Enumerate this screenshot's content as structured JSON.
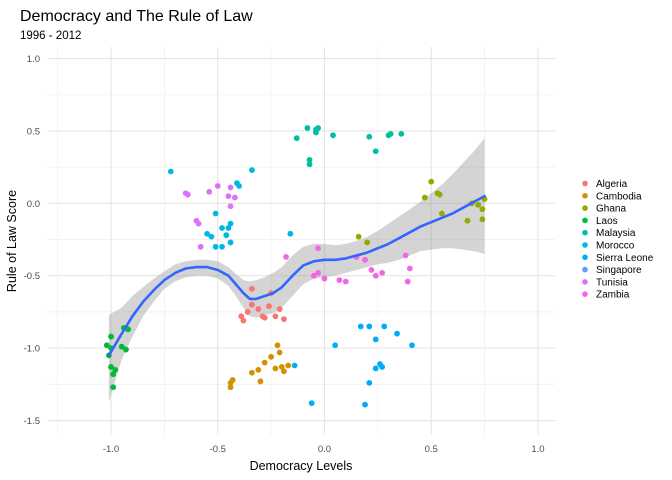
{
  "chart_data": {
    "type": "scatter",
    "title": "Democracy and The Rule of Law",
    "subtitle": "1996 - 2012",
    "xlabel": "Democracy Levels",
    "ylabel": "Rule of Law Score",
    "xlim": [
      -1.3,
      1.08
    ],
    "ylim": [
      -1.6,
      1.08
    ],
    "x_ticks": [
      -1.0,
      -0.5,
      0.0,
      0.5,
      1.0
    ],
    "x_tick_labels": [
      "-1.0",
      "-0.5",
      "0.0",
      "0.5",
      "1.0"
    ],
    "y_ticks": [
      -1.5,
      -1.0,
      -0.5,
      0.0,
      0.5,
      1.0
    ],
    "y_tick_labels": [
      "-1.5",
      "-1.0",
      "-0.5",
      "0.0",
      "0.5",
      "1.0"
    ],
    "grid": true,
    "legend_position": "right",
    "series": [
      {
        "name": "Algeria",
        "color": "#F8766D",
        "points": [
          [
            -0.39,
            -0.78
          ],
          [
            -0.38,
            -0.81
          ],
          [
            -0.36,
            -0.75
          ],
          [
            -0.34,
            -0.7
          ],
          [
            -0.34,
            -0.59
          ],
          [
            -0.31,
            -0.73
          ],
          [
            -0.29,
            -0.78
          ],
          [
            -0.28,
            -0.79
          ],
          [
            -0.26,
            -0.71
          ],
          [
            -0.23,
            -0.78
          ],
          [
            -0.21,
            -0.73
          ],
          [
            -0.19,
            -0.8
          ],
          [
            -0.25,
            -0.62
          ]
        ]
      },
      {
        "name": "Cambodia",
        "color": "#D39200",
        "points": [
          [
            -0.44,
            -1.24
          ],
          [
            -0.44,
            -1.27
          ],
          [
            -0.43,
            -1.22
          ],
          [
            -0.34,
            -1.17
          ],
          [
            -0.31,
            -1.15
          ],
          [
            -0.3,
            -1.23
          ],
          [
            -0.28,
            -1.1
          ],
          [
            -0.25,
            -1.06
          ],
          [
            -0.23,
            -1.14
          ],
          [
            -0.22,
            -0.98
          ],
          [
            -0.21,
            -1.03
          ],
          [
            -0.2,
            -1.13
          ],
          [
            -0.19,
            -1.16
          ],
          [
            -0.17,
            -1.12
          ]
        ]
      },
      {
        "name": "Ghana",
        "color": "#93AA00",
        "points": [
          [
            0.16,
            -0.23
          ],
          [
            0.2,
            -0.27
          ],
          [
            0.47,
            0.04
          ],
          [
            0.5,
            0.15
          ],
          [
            0.53,
            0.07
          ],
          [
            0.54,
            0.06
          ],
          [
            0.55,
            -0.07
          ],
          [
            0.67,
            -0.12
          ],
          [
            0.69,
            0.0
          ],
          [
            0.72,
            -0.01
          ],
          [
            0.74,
            -0.04
          ],
          [
            0.74,
            -0.11
          ],
          [
            0.75,
            0.03
          ]
        ]
      },
      {
        "name": "Laos",
        "color": "#00BA38",
        "points": [
          [
            -1.02,
            -0.98
          ],
          [
            -1.01,
            -1.05
          ],
          [
            -1.0,
            -0.92
          ],
          [
            -1.0,
            -1.0
          ],
          [
            -1.0,
            -1.13
          ],
          [
            -0.99,
            -1.18
          ],
          [
            -0.99,
            -1.27
          ],
          [
            -0.95,
            -0.99
          ],
          [
            -0.94,
            -0.86
          ],
          [
            -0.93,
            -1.01
          ],
          [
            -0.92,
            -0.87
          ],
          [
            -0.98,
            -1.15
          ]
        ]
      },
      {
        "name": "Malaysia",
        "color": "#00C19F",
        "points": [
          [
            -0.13,
            0.45
          ],
          [
            -0.08,
            0.52
          ],
          [
            -0.07,
            0.27
          ],
          [
            -0.07,
            0.3
          ],
          [
            -0.04,
            0.51
          ],
          [
            -0.04,
            0.49
          ],
          [
            -0.03,
            0.52
          ],
          [
            0.04,
            0.47
          ],
          [
            0.21,
            0.46
          ],
          [
            0.3,
            0.47
          ],
          [
            0.31,
            0.48
          ],
          [
            0.36,
            0.48
          ],
          [
            0.24,
            0.36
          ]
        ]
      },
      {
        "name": "Morocco",
        "color": "#00B9E3",
        "points": [
          [
            -0.34,
            0.23
          ],
          [
            -0.72,
            0.22
          ],
          [
            -0.51,
            -0.3
          ],
          [
            -0.48,
            -0.3
          ],
          [
            -0.44,
            -0.27
          ],
          [
            -0.41,
            0.14
          ],
          [
            -0.4,
            0.12
          ],
          [
            -0.51,
            -0.07
          ],
          [
            -0.46,
            -0.22
          ],
          [
            -0.45,
            -0.17
          ],
          [
            -0.48,
            -0.17
          ],
          [
            -0.55,
            -0.21
          ],
          [
            -0.53,
            -0.23
          ],
          [
            -0.44,
            -0.14
          ],
          [
            -0.16,
            -0.21
          ]
        ]
      },
      {
        "name": "Sierra Leone",
        "color": "#00ADFA",
        "points": [
          [
            0.17,
            -0.85
          ],
          [
            0.21,
            -0.85
          ],
          [
            0.24,
            -0.94
          ],
          [
            0.28,
            -0.85
          ],
          [
            0.34,
            -0.9
          ],
          [
            0.41,
            -0.98
          ],
          [
            0.26,
            -1.11
          ],
          [
            0.27,
            -1.13
          ],
          [
            0.21,
            -1.24
          ],
          [
            0.19,
            -1.39
          ],
          [
            -0.14,
            -1.12
          ],
          [
            -0.06,
            -1.38
          ],
          [
            0.05,
            -0.98
          ],
          [
            0.24,
            -1.14
          ]
        ]
      },
      {
        "name": "Singapore",
        "color": "#619CFF",
        "points": []
      },
      {
        "name": "Tunisia",
        "color": "#DB72FB",
        "points": [
          [
            -0.65,
            0.07
          ],
          [
            -0.64,
            0.06
          ],
          [
            -0.6,
            -0.12
          ],
          [
            -0.59,
            -0.14
          ],
          [
            -0.58,
            -0.3
          ],
          [
            -0.54,
            0.08
          ],
          [
            -0.5,
            0.12
          ],
          [
            -0.44,
            0.11
          ],
          [
            -0.42,
            0.04
          ],
          [
            -0.44,
            -0.02
          ],
          [
            -0.45,
            0.05
          ]
        ]
      },
      {
        "name": "Zambia",
        "color": "#F564E3",
        "points": [
          [
            -0.18,
            -0.37
          ],
          [
            -0.03,
            -0.31
          ],
          [
            -0.03,
            -0.48
          ],
          [
            0.0,
            -0.52
          ],
          [
            0.07,
            -0.53
          ],
          [
            0.1,
            -0.54
          ],
          [
            0.15,
            -0.37
          ],
          [
            0.19,
            -0.39
          ],
          [
            0.22,
            -0.46
          ],
          [
            0.24,
            -0.5
          ],
          [
            0.27,
            -0.48
          ],
          [
            0.38,
            -0.36
          ],
          [
            0.4,
            -0.45
          ],
          [
            0.39,
            -0.54
          ],
          [
            -0.05,
            -0.5
          ]
        ]
      }
    ],
    "smooth": {
      "color": "#3366FF",
      "line": [
        [
          -1.01,
          -1.05
        ],
        [
          -0.95,
          -0.9
        ],
        [
          -0.9,
          -0.78
        ],
        [
          -0.85,
          -0.68
        ],
        [
          -0.8,
          -0.6
        ],
        [
          -0.75,
          -0.53
        ],
        [
          -0.7,
          -0.48
        ],
        [
          -0.65,
          -0.45
        ],
        [
          -0.6,
          -0.44
        ],
        [
          -0.55,
          -0.44
        ],
        [
          -0.5,
          -0.46
        ],
        [
          -0.45,
          -0.5
        ],
        [
          -0.42,
          -0.55
        ],
        [
          -0.38,
          -0.62
        ],
        [
          -0.35,
          -0.66
        ],
        [
          -0.32,
          -0.66
        ],
        [
          -0.28,
          -0.64
        ],
        [
          -0.24,
          -0.62
        ],
        [
          -0.2,
          -0.58
        ],
        [
          -0.15,
          -0.5
        ],
        [
          -0.1,
          -0.43
        ],
        [
          -0.05,
          -0.4
        ],
        [
          0.0,
          -0.39
        ],
        [
          0.05,
          -0.39
        ],
        [
          0.1,
          -0.38
        ],
        [
          0.15,
          -0.36
        ],
        [
          0.2,
          -0.34
        ],
        [
          0.25,
          -0.31
        ],
        [
          0.3,
          -0.28
        ],
        [
          0.35,
          -0.24
        ],
        [
          0.4,
          -0.2
        ],
        [
          0.45,
          -0.16
        ],
        [
          0.5,
          -0.13
        ],
        [
          0.55,
          -0.1
        ],
        [
          0.6,
          -0.07
        ],
        [
          0.65,
          -0.03
        ],
        [
          0.7,
          0.01
        ],
        [
          0.75,
          0.05
        ]
      ],
      "upper": [
        [
          -1.01,
          -0.77
        ],
        [
          -0.95,
          -0.72
        ],
        [
          -0.9,
          -0.64
        ],
        [
          -0.85,
          -0.58
        ],
        [
          -0.8,
          -0.52
        ],
        [
          -0.75,
          -0.47
        ],
        [
          -0.7,
          -0.42
        ],
        [
          -0.65,
          -0.4
        ],
        [
          -0.6,
          -0.39
        ],
        [
          -0.55,
          -0.39
        ],
        [
          -0.5,
          -0.4
        ],
        [
          -0.45,
          -0.44
        ],
        [
          -0.42,
          -0.48
        ],
        [
          -0.38,
          -0.53
        ],
        [
          -0.35,
          -0.54
        ],
        [
          -0.32,
          -0.53
        ],
        [
          -0.28,
          -0.51
        ],
        [
          -0.24,
          -0.48
        ],
        [
          -0.2,
          -0.44
        ],
        [
          -0.15,
          -0.36
        ],
        [
          -0.1,
          -0.3
        ],
        [
          -0.05,
          -0.28
        ],
        [
          0.0,
          -0.28
        ],
        [
          0.05,
          -0.29
        ],
        [
          0.1,
          -0.28
        ],
        [
          0.15,
          -0.26
        ],
        [
          0.2,
          -0.23
        ],
        [
          0.25,
          -0.19
        ],
        [
          0.3,
          -0.14
        ],
        [
          0.35,
          -0.09
        ],
        [
          0.4,
          -0.04
        ],
        [
          0.45,
          0.01
        ],
        [
          0.5,
          0.07
        ],
        [
          0.55,
          0.13
        ],
        [
          0.6,
          0.2
        ],
        [
          0.65,
          0.28
        ],
        [
          0.7,
          0.36
        ],
        [
          0.75,
          0.45
        ]
      ],
      "lower": [
        [
          -1.01,
          -1.37
        ],
        [
          -0.95,
          -1.08
        ],
        [
          -0.9,
          -0.92
        ],
        [
          -0.85,
          -0.78
        ],
        [
          -0.8,
          -0.68
        ],
        [
          -0.75,
          -0.59
        ],
        [
          -0.7,
          -0.54
        ],
        [
          -0.65,
          -0.51
        ],
        [
          -0.6,
          -0.5
        ],
        [
          -0.55,
          -0.5
        ],
        [
          -0.5,
          -0.52
        ],
        [
          -0.45,
          -0.57
        ],
        [
          -0.42,
          -0.63
        ],
        [
          -0.38,
          -0.72
        ],
        [
          -0.35,
          -0.78
        ],
        [
          -0.32,
          -0.79
        ],
        [
          -0.28,
          -0.77
        ],
        [
          -0.24,
          -0.76
        ],
        [
          -0.2,
          -0.72
        ],
        [
          -0.15,
          -0.64
        ],
        [
          -0.1,
          -0.56
        ],
        [
          -0.05,
          -0.52
        ],
        [
          0.0,
          -0.51
        ],
        [
          0.05,
          -0.5
        ],
        [
          0.1,
          -0.48
        ],
        [
          0.15,
          -0.46
        ],
        [
          0.2,
          -0.44
        ],
        [
          0.25,
          -0.42
        ],
        [
          0.3,
          -0.41
        ],
        [
          0.35,
          -0.39
        ],
        [
          0.4,
          -0.36
        ],
        [
          0.45,
          -0.33
        ],
        [
          0.5,
          -0.32
        ],
        [
          0.55,
          -0.31
        ],
        [
          0.6,
          -0.31
        ],
        [
          0.65,
          -0.32
        ],
        [
          0.7,
          -0.33
        ],
        [
          0.75,
          -0.35
        ]
      ]
    }
  }
}
